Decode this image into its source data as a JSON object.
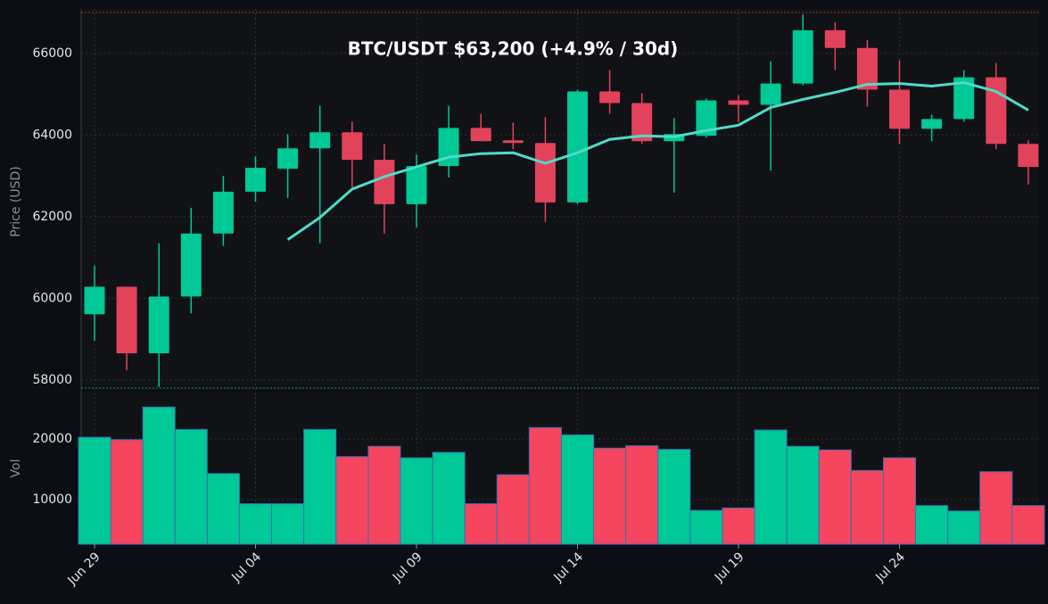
{
  "chart_data": [
    {
      "type": "candlestick",
      "title": "BTC/USDT   $63,200   (+4.9% / 30d)",
      "ylabel": "Price (USD)",
      "categories": [
        "Jun 29",
        null,
        null,
        null,
        null,
        "Jul 04",
        null,
        null,
        null,
        null,
        "Jul 09",
        null,
        null,
        null,
        null,
        "Jul 14",
        null,
        null,
        null,
        null,
        "Jul 19",
        null,
        null,
        null,
        null,
        "Jul 24",
        null,
        null,
        null,
        null
      ],
      "open": [
        59609,
        60283,
        58652,
        60043,
        61587,
        62609,
        63174,
        63674,
        64065,
        63391,
        62304,
        63239,
        64174,
        63870,
        63804,
        62348,
        65065,
        64783,
        63848,
        63978,
        64848,
        64739,
        65261,
        66565,
        66130,
        65109,
        64152,
        64391,
        65413,
        63783
      ],
      "high": [
        60804,
        60283,
        61348,
        62217,
        63000,
        63478,
        64022,
        64717,
        64326,
        63783,
        63522,
        64717,
        64522,
        64304,
        64435,
        65109,
        65587,
        65022,
        64413,
        64891,
        64978,
        65804,
        66950,
        66761,
        66326,
        65826,
        64500,
        65587,
        65761,
        63870
      ],
      "low": [
        58957,
        58239,
        57826,
        59630,
        61283,
        62370,
        62457,
        61348,
        62717,
        61587,
        61739,
        62957,
        63848,
        63652,
        61870,
        62304,
        64522,
        63783,
        62587,
        63935,
        64304,
        63130,
        65217,
        65587,
        64696,
        63783,
        63848,
        64326,
        63652,
        62783
      ],
      "close": [
        60283,
        58652,
        60043,
        61587,
        62609,
        63196,
        63674,
        64065,
        63391,
        62304,
        63239,
        64174,
        63848,
        63804,
        62348,
        65065,
        64783,
        63848,
        64022,
        64848,
        64739,
        65261,
        66565,
        66130,
        65109,
        64152,
        64391,
        65413,
        63783,
        63217
      ],
      "up_color": "#00c896",
      "down_color": "#e2435b",
      "ma_values": [
        null,
        null,
        null,
        null,
        null,
        null,
        61435,
        61978,
        62674,
        62978,
        63217,
        63457,
        63543,
        63565,
        63304,
        63565,
        63891,
        63978,
        63957,
        64109,
        64239,
        64674,
        64870,
        65043,
        65239,
        65261,
        65196,
        65283,
        65065,
        64609
      ],
      "ma_color": "#4fdcc8",
      "ylim": [
        57800,
        67000
      ],
      "yticks": [
        58000,
        60000,
        62000,
        64000,
        66000
      ],
      "grid": true
    },
    {
      "type": "bar",
      "ylabel": "Vol",
      "values": [
        20300,
        19900,
        25300,
        21600,
        14300,
        9300,
        9300,
        21600,
        17100,
        18800,
        16900,
        17800,
        9300,
        14100,
        21900,
        20700,
        18500,
        18900,
        18300,
        8200,
        8600,
        21500,
        18800,
        18200,
        14800,
        16900,
        9000,
        8100,
        14600,
        9000
      ],
      "up_color": "#00c896",
      "down_color": "#f5455f",
      "ylim": [
        2600,
        27700
      ],
      "yticks": [
        10000,
        20000
      ],
      "grid": true
    }
  ]
}
